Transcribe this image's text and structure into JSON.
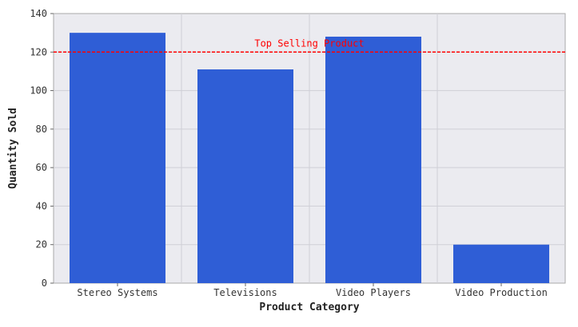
{
  "chart_data": {
    "type": "bar",
    "categories": [
      "Stereo Systems",
      "Televisions",
      "Video Players",
      "Video Production"
    ],
    "values": [
      130,
      111,
      128,
      20
    ],
    "xlabel": "Product Category",
    "ylabel": "Quantity Sold",
    "ylim": [
      0,
      140
    ],
    "yticks": [
      0,
      20,
      40,
      60,
      80,
      100,
      120,
      140
    ],
    "grid": true,
    "reference_line": {
      "value": 120,
      "label": "Top Selling Product",
      "color": "#ff0000",
      "style": "dashed"
    },
    "colors": {
      "bar": "#2f5ed6",
      "plot_background": "#ebebf0",
      "grid": "#cfcfd6"
    }
  }
}
